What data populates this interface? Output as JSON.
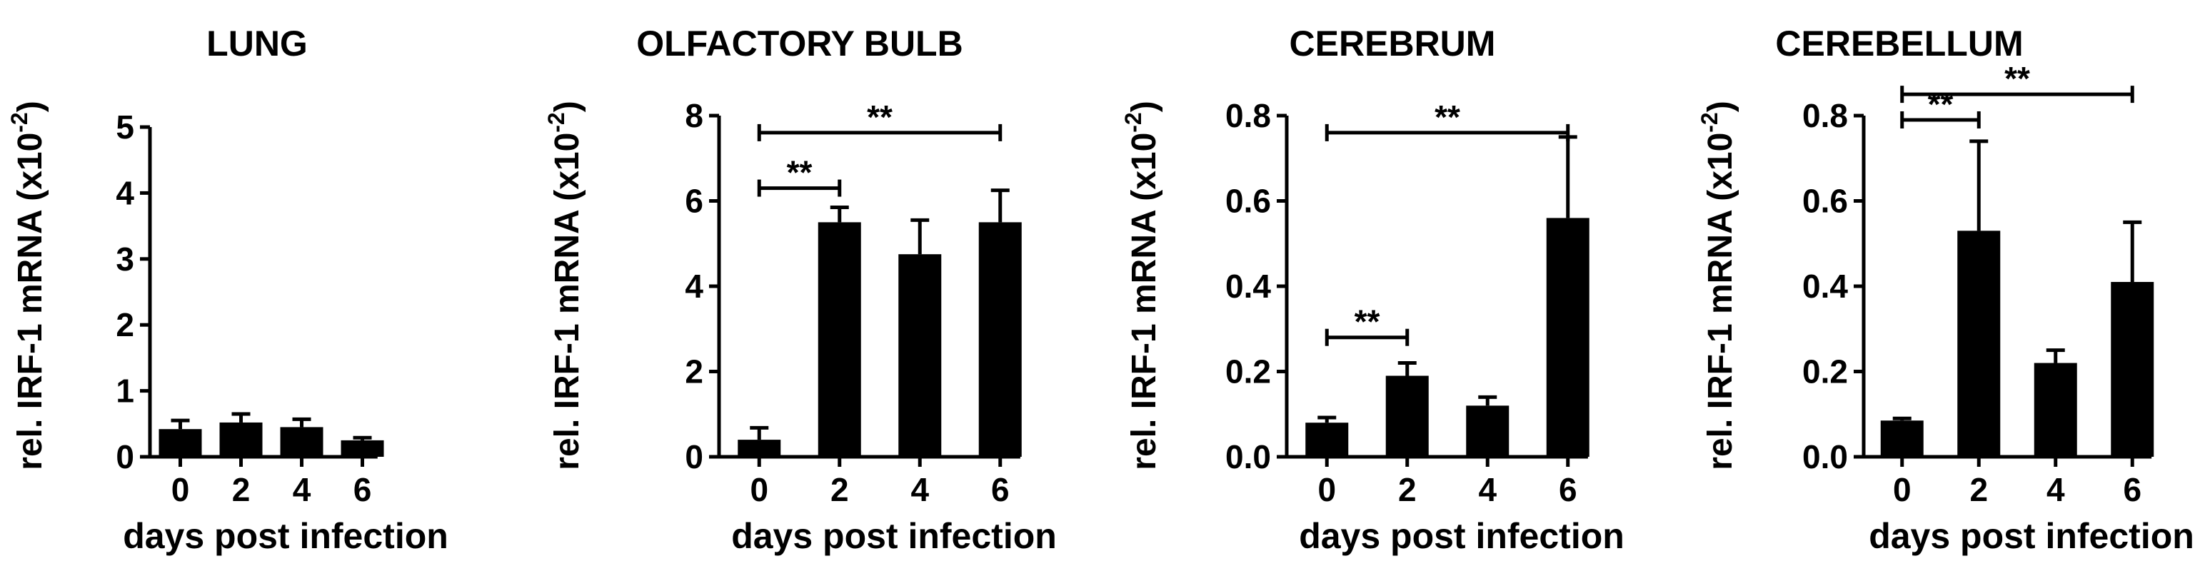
{
  "chart_data": [
    {
      "type": "bar",
      "title": "LUNG",
      "xlabel": "days post infection",
      "ylabel": "rel. IRF-1 mRNA (x10",
      "ylabel_sup": "-2",
      "ylabel_close": ")",
      "categories": [
        "0",
        "2",
        "4",
        "6"
      ],
      "values": [
        0.42,
        0.52,
        0.45,
        0.25
      ],
      "errors": [
        0.13,
        0.13,
        0.12,
        0.04
      ],
      "ylim": [
        0,
        5
      ],
      "yticks": [
        "0",
        "1",
        "2",
        "3",
        "4",
        "5"
      ],
      "ytick_values": [
        0,
        1,
        2,
        3,
        4,
        5
      ],
      "significance": [],
      "bar_color": "#000000"
    },
    {
      "type": "bar",
      "title": "OLFACTORY BULB",
      "xlabel": "days post infection",
      "ylabel": "rel. IRF-1 mRNA (x10",
      "ylabel_sup": "-2",
      "ylabel_close": ")",
      "categories": [
        "0",
        "2",
        "4",
        "6"
      ],
      "values": [
        0.4,
        5.5,
        4.75,
        5.5
      ],
      "errors": [
        0.28,
        0.35,
        0.8,
        0.75
      ],
      "ylim": [
        0,
        8
      ],
      "yticks": [
        "0",
        "2",
        "4",
        "6",
        "8"
      ],
      "ytick_values": [
        0,
        2,
        4,
        6,
        8
      ],
      "significance": [
        {
          "from": 0,
          "to": 3,
          "y": 7.6,
          "label": "**"
        },
        {
          "from": 0,
          "to": 1,
          "y": 6.3,
          "label": "**"
        }
      ],
      "bar_color": "#000000"
    },
    {
      "type": "bar",
      "title": "CEREBRUM",
      "xlabel": "days post infection",
      "ylabel": "rel. IRF-1 mRNA (x10",
      "ylabel_sup": "-2",
      "ylabel_close": ")",
      "categories": [
        "0",
        "2",
        "4",
        "6"
      ],
      "values": [
        0.08,
        0.19,
        0.12,
        0.56
      ],
      "errors": [
        0.012,
        0.03,
        0.02,
        0.19
      ],
      "ylim": [
        0,
        0.8
      ],
      "yticks": [
        "0.0",
        "0.2",
        "0.4",
        "0.6",
        "0.8"
      ],
      "ytick_values": [
        0,
        0.2,
        0.4,
        0.6,
        0.8
      ],
      "significance": [
        {
          "from": 0,
          "to": 3,
          "y": 0.76,
          "label": "**"
        },
        {
          "from": 0,
          "to": 1,
          "y": 0.28,
          "label": "**"
        }
      ],
      "bar_color": "#000000"
    },
    {
      "type": "bar",
      "title": "CEREBELLUM",
      "xlabel": "days post infection",
      "ylabel": "rel. IRF-1 mRNA (x10",
      "ylabel_sup": "-2",
      "ylabel_close": ")",
      "categories": [
        "0",
        "2",
        "4",
        "6"
      ],
      "values": [
        0.085,
        0.53,
        0.22,
        0.41
      ],
      "errors": [
        0.005,
        0.21,
        0.03,
        0.14
      ],
      "ylim": [
        0,
        0.8
      ],
      "yticks": [
        "0.0",
        "0.2",
        "0.4",
        "0.6",
        "0.8"
      ],
      "ytick_values": [
        0,
        0.2,
        0.4,
        0.6,
        0.8
      ],
      "significance": [
        {
          "from": 0,
          "to": 3,
          "y": 0.85,
          "label": "**"
        },
        {
          "from": 0,
          "to": 1,
          "y": 0.79,
          "label": "**"
        }
      ],
      "bar_color": "#000000"
    }
  ]
}
